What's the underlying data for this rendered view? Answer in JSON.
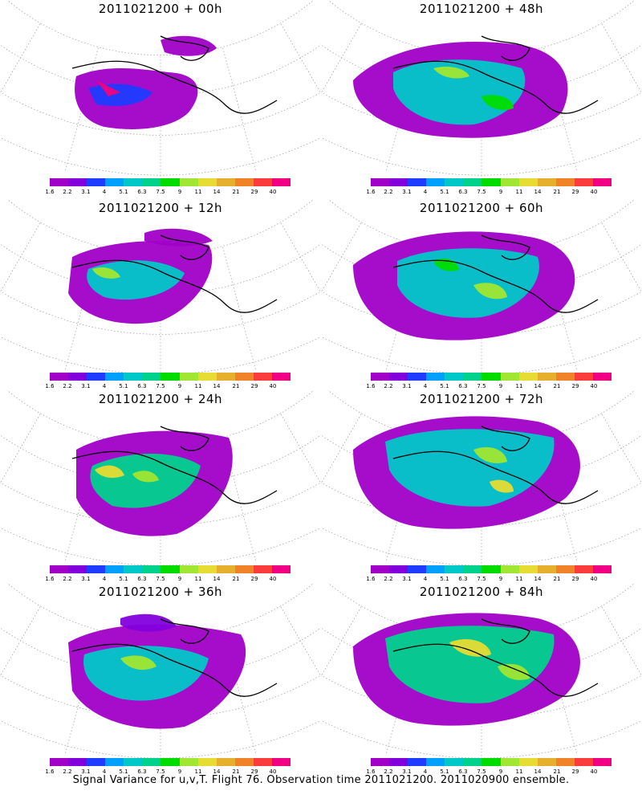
{
  "colorbar": {
    "colors": [
      "#a000c8",
      "#8200dc",
      "#1e3cff",
      "#00a0ff",
      "#00c8c8",
      "#00d28c",
      "#00dc00",
      "#a0e632",
      "#e6dc32",
      "#e6af2d",
      "#f08228",
      "#fa3c3c",
      "#f00082"
    ],
    "labels": [
      "1.6",
      "2.2",
      "3.1",
      "4",
      "5.1",
      "6.3",
      "7.5",
      "9",
      "11",
      "14",
      "21",
      "29",
      "40"
    ]
  },
  "panels": [
    {
      "title": "2011021200 + 00h"
    },
    {
      "title": "2011021200 + 48h"
    },
    {
      "title": "2011021200 + 12h"
    },
    {
      "title": "2011021200 + 60h"
    },
    {
      "title": "2011021200 + 24h"
    },
    {
      "title": "2011021200 + 72h"
    },
    {
      "title": "2011021200 + 36h"
    },
    {
      "title": "2011021200 + 84h"
    }
  ],
  "footer": "Signal Variance for u,v,T. Flight 76. Observation time 2011021200. 2011020900 ensemble."
}
